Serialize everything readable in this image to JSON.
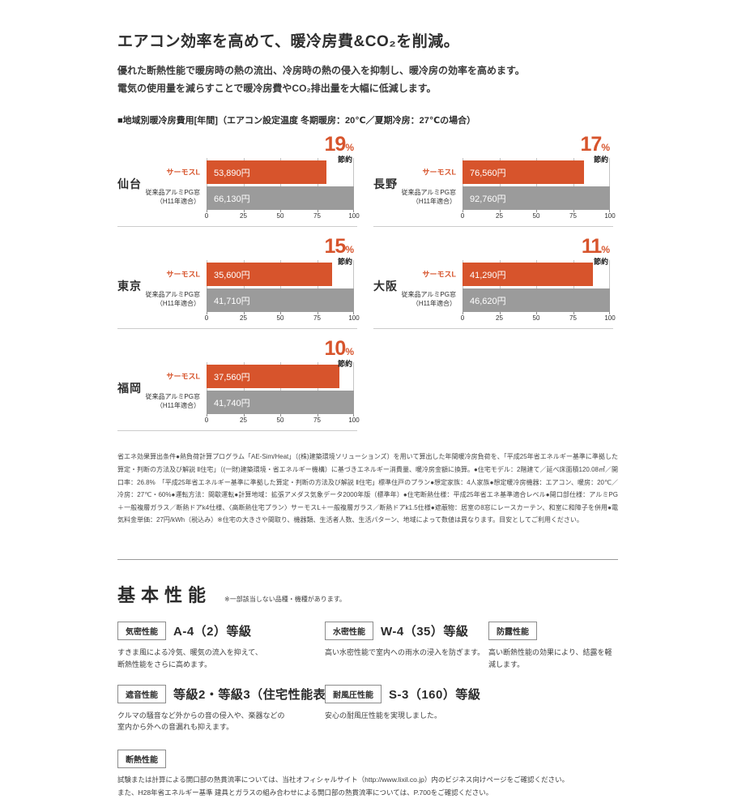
{
  "header": {
    "title": "エアコン効率を高めて、暖冷房費&CO₂を削減。",
    "intro_line1": "優れた断熱性能で暖房時の熱の流出、冷房時の熱の侵入を抑制し、暖冷房の効率を高めます。",
    "intro_line2": "電気の使用量を減らすことで暖冷房費やCO₂排出量を大幅に低減します。",
    "section_label": "■地域別暖冷房費用[年間]（エアコン設定温度 冬期暖房：20℃／夏期冷房：27℃の場合）"
  },
  "chart_data": {
    "type": "bar",
    "orientation": "horizontal",
    "legend_position": "left-of-bars",
    "grid": true,
    "x_axis_range": [
      0,
      100
    ],
    "x_ticks": [
      "0",
      "25",
      "50",
      "75",
      "100"
    ],
    "saving_suffix": "%",
    "saving_label": "節約",
    "series": [
      {
        "name": "サーモスL",
        "color": "#d7542c"
      },
      {
        "name": "従来品アルミPG窓\n（H11年適合）",
        "color": "#9b9b9b"
      }
    ],
    "charts": [
      {
        "region": "仙台",
        "saving_pct": "19",
        "values": [
          "53,890円",
          "66,130円"
        ],
        "thermos_pct": 81.5,
        "conventional_pct": 100
      },
      {
        "region": "長野",
        "saving_pct": "17",
        "values": [
          "76,560円",
          "92,760円"
        ],
        "thermos_pct": 82.5,
        "conventional_pct": 100
      },
      {
        "region": "東京",
        "saving_pct": "15",
        "values": [
          "35,600円",
          "41,710円"
        ],
        "thermos_pct": 85.3,
        "conventional_pct": 100
      },
      {
        "region": "大阪",
        "saving_pct": "11",
        "values": [
          "41,290円",
          "46,620円"
        ],
        "thermos_pct": 88.6,
        "conventional_pct": 100
      },
      {
        "region": "福岡",
        "saving_pct": "10",
        "values": [
          "37,560円",
          "41,740円"
        ],
        "thermos_pct": 90.0,
        "conventional_pct": 100
      }
    ]
  },
  "footnote": "省エネ効果算出条件●熱負荷計算プログラム「AE-Sim/Heat」（(株)建築環境ソリューションズ）を用いて算出した年間暖冷房負荷を、「平成25年省エネルギー基準に準拠した算定・判断の方法及び解説 Ⅱ住宅」（(一財)建築環境・省エネルギー機構）に基づきエネルギー消費量、暖冷房金額に換算。●住宅モデル：2階建て／延べ床面積120.08㎡／開口率：26.8%　「平成25年省エネルギー基準に準拠した算定・判断の方法及び解説 Ⅱ住宅」標準住戸のプラン●想定家族：4人家族●想定暖冷房機器：エアコン、暖房：20℃／冷房：27℃・60%●運転方法：間歇運転●計算地域：拡張アメダス気象データ2000年版（標準年）●住宅断熱仕様：平成25年省エネ基準適合レベル●開口部仕様：アルミPG＋一般複層ガラス／断熱ドアk4仕様、〈高断熱住宅プラン〉サーモスL＋一般複層ガラス／断熱ドアk1.5仕様●遮蔽物：居室の8窓にレースカーテン、和室に和障子を併用●電気料金単価：27円/kWh（税込み）※住宅の大きさや間取り、機器類、生活者人数、生活パターン、地域によって数値は異なります。目安としてご利用ください。",
  "basic": {
    "heading": "基本性能",
    "note": "※一部該当しない品種・機種があります。",
    "specs": [
      {
        "badge": "気密性能",
        "value": "A-4（2）等級",
        "desc": "すきま風による冷気、暖気の流入を抑えて、\n断熱性能をさらに高めます。"
      },
      {
        "badge": "水密性能",
        "value": "W-4（35）等級",
        "desc": "高い水密性能で室内への雨水の浸入を防ぎます。"
      },
      {
        "badge": "防露性能",
        "value": "",
        "desc": "高い断熱性能の効果により、結露を軽減します。"
      },
      {
        "badge": "遮音性能",
        "value": "等級2・等級3（住宅性能表示）",
        "desc": "クルマの騒音など外からの音の侵入や、楽器などの\n室内から外への音漏れも抑えます。"
      },
      {
        "badge": "耐風圧性能",
        "value": "S-3（160）等級",
        "desc": "安心の耐風圧性能を実現しました。"
      }
    ],
    "insulation": {
      "badge": "断熱性能",
      "lines": "試験または計算による開口部の熱貫流率については、当社オフィシャルサイト（http://www.lixil.co.jp）内のビジネス向けページをご確認ください。\nまた、H28年省エネルギー基準 建具とガラスの組み合わせによる開口部の熱貫流率については、P.700をご確認ください。"
    }
  }
}
